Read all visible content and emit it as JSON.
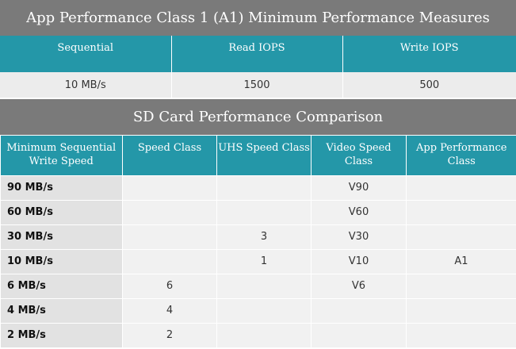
{
  "a1_table": {
    "title": "App Performance Class 1 (A1) Minimum Performance Measures",
    "headers": [
      "Sequential",
      "Read IOPS",
      "Write IOPS"
    ],
    "values": [
      "10 MB/s",
      "1500",
      "500"
    ]
  },
  "comparison_table": {
    "title": "SD Card Performance Comparison",
    "headers": [
      "Minimum Sequential Write Speed",
      "Speed Class",
      "UHS Speed Class",
      "Video Speed Class",
      "App Performance Class"
    ],
    "speeds": [
      "90 MB/s",
      "60 MB/s",
      "30 MB/s",
      "10 MB/s",
      "6 MB/s",
      "4 MB/s",
      "2 MB/s"
    ],
    "speed_class": [
      "",
      "",
      "",
      "",
      "6",
      "4",
      "2"
    ],
    "uhs_class": [
      "",
      "",
      "3",
      "1",
      "",
      "",
      ""
    ],
    "video_class": [
      "V90",
      "V60",
      "V30",
      "V10",
      "V6",
      "",
      ""
    ],
    "app_class": [
      "",
      "",
      "",
      "A1",
      "",
      "",
      ""
    ]
  }
}
